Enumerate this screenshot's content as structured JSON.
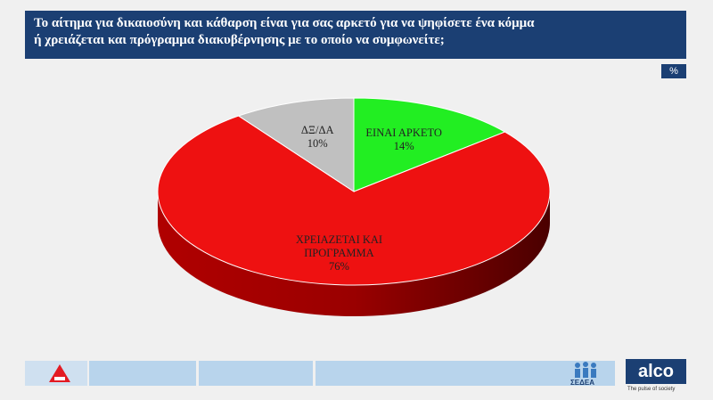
{
  "header": {
    "title": [
      "Το αίτημα για δικαιοσύνη και κάθαρση είναι για σας αρκετό για να  ψηφίσετε ένα κόμμα",
      "ή  χρειάζεται και πρόγραμμα διακυβέρνησης με το οποίο να συμφωνείτε;"
    ],
    "unit_badge": "%"
  },
  "chart_data": {
    "type": "pie",
    "categories": [
      "ΕΙΝΑΙ ΑΡΚΕΤΟ",
      "ΧΡΕΙΑΖΕΤΑΙ ΚΑΙ ΠΡΟΓΡΑΜΜΑ",
      "ΔΞ/ΔΑ"
    ],
    "values": [
      14,
      76,
      10
    ],
    "value_labels": [
      "14%",
      "76%",
      "10%"
    ],
    "colors": [
      "#22ee22",
      "#ee1111",
      "#c0c0c0"
    ]
  },
  "footer": {
    "logo_left": "ΣΕΔΕΑ",
    "logo_right": "alco",
    "tagline": "The pulse of society"
  }
}
